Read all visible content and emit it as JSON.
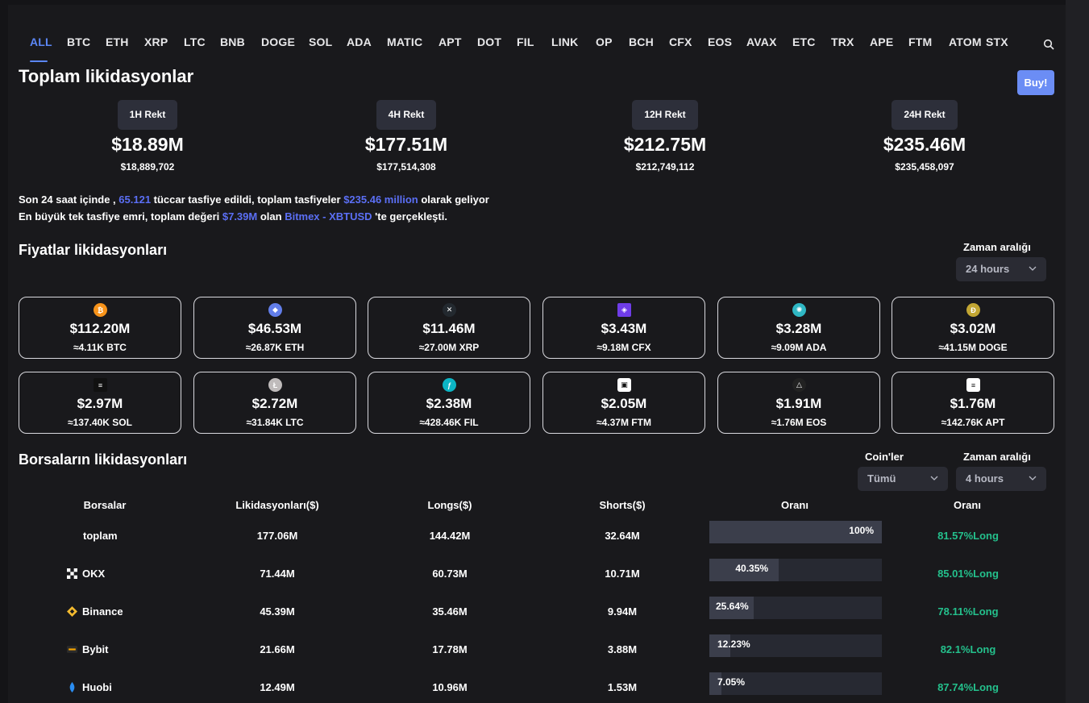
{
  "tabs": [
    "ALL",
    "BTC",
    "ETH",
    "XRP",
    "LTC",
    "BNB",
    "DOGE",
    "SOL",
    "ADA",
    "MATIC",
    "APT",
    "DOT",
    "FIL",
    "LINK",
    "OP",
    "BCH",
    "CFX",
    "EOS",
    "AVAX",
    "ETC",
    "TRX",
    "APE",
    "FTM",
    "ATOM",
    "STX"
  ],
  "header": {
    "title": "Toplam likidasyonlar",
    "buy_label": "Buy!"
  },
  "rekt": [
    {
      "label": "1H Rekt",
      "value": "$18.89M",
      "exact": "$18,889,702"
    },
    {
      "label": "4H Rekt",
      "value": "$177.51M",
      "exact": "$177,514,308"
    },
    {
      "label": "12H Rekt",
      "value": "$212.75M",
      "exact": "$212,749,112"
    },
    {
      "label": "24H Rekt",
      "value": "$235.46M",
      "exact": "$235,458,097"
    }
  ],
  "summary": {
    "l1_a": "Son 24 saat içinde , ",
    "traders": "65.121",
    "l1_b": " tüccar tasfiye edildi, toplam tasfiyeler ",
    "total": "$235.46 million",
    "l1_c": " olarak geliyor",
    "l2_a": "En büyük tek tasfiye emri, toplam değeri ",
    "largest": "$7.39M",
    "l2_b": " olan ",
    "market": "Bitmex - XBTUSD",
    "l2_c": " 'te gerçekleşti."
  },
  "price_section": {
    "title": "Fiyatlar likidasyonları",
    "range_label": "Zaman aralığı",
    "range_value": "24 hours"
  },
  "coins": [
    {
      "icon": "btc-icon",
      "value": "$112.20M",
      "qty": "≈4.11K BTC",
      "color": "#f7931a",
      "glyph": "₿"
    },
    {
      "icon": "eth-icon",
      "value": "$46.53M",
      "qty": "≈26.87K ETH",
      "color": "#627eea",
      "glyph": "◆"
    },
    {
      "icon": "xrp-icon",
      "value": "$11.46M",
      "qty": "≈27.00M XRP",
      "color": "#23292f",
      "glyph": "✕"
    },
    {
      "icon": "cfx-icon",
      "value": "$3.43M",
      "qty": "≈9.18M CFX",
      "color": "#6f3ce8",
      "glyph": "◈"
    },
    {
      "icon": "ada-icon",
      "value": "$3.28M",
      "qty": "≈9.09M ADA",
      "color": "#2fb7c4",
      "glyph": "✺"
    },
    {
      "icon": "doge-icon",
      "value": "$3.02M",
      "qty": "≈41.15M DOGE",
      "color": "#c2a633",
      "glyph": "Đ"
    },
    {
      "icon": "sol-icon",
      "value": "$2.97M",
      "qty": "≈137.40K SOL",
      "color": "#111111",
      "glyph": "≡"
    },
    {
      "icon": "ltc-icon",
      "value": "$2.72M",
      "qty": "≈31.84K LTC",
      "color": "#bfbbbb",
      "glyph": "Ł"
    },
    {
      "icon": "fil-icon",
      "value": "$2.38M",
      "qty": "≈428.46K FIL",
      "color": "#0cb5c5",
      "glyph": "ƒ"
    },
    {
      "icon": "ftm-icon",
      "value": "$2.05M",
      "qty": "≈4.37M FTM",
      "color": "#ffffff",
      "glyph": "▣"
    },
    {
      "icon": "eos-icon",
      "value": "$1.91M",
      "qty": "≈1.76M EOS",
      "color": "#222222",
      "glyph": "△"
    },
    {
      "icon": "apt-icon",
      "value": "$1.76M",
      "qty": "≈142.76K APT",
      "color": "#ffffff",
      "glyph": "≡"
    }
  ],
  "exchange_section": {
    "title": "Borsaların likidasyonları",
    "coins_label": "Coin'ler",
    "coins_value": "Tümü",
    "range_label": "Zaman aralığı",
    "range_value": "4 hours"
  },
  "table": {
    "headers": [
      "Borsalar",
      "Likidasyonları($)",
      "Longs($)",
      "Shorts($)",
      "Oranı",
      "Oranı"
    ],
    "rows": [
      {
        "name": "toplam",
        "logo": "",
        "liq": "177.06M",
        "longs": "144.42M",
        "shorts": "32.64M",
        "share": 1.0,
        "share_label": "100%",
        "ratio": "81.57%Long"
      },
      {
        "name": "OKX",
        "logo": "okx-logo",
        "liq": "71.44M",
        "longs": "60.73M",
        "shorts": "10.71M",
        "share": 0.4035,
        "share_label": "40.35%",
        "ratio": "85.01%Long"
      },
      {
        "name": "Binance",
        "logo": "binance-logo",
        "liq": "45.39M",
        "longs": "35.46M",
        "shorts": "9.94M",
        "share": 0.2564,
        "share_label": "25.64%",
        "ratio": "78.11%Long"
      },
      {
        "name": "Bybit",
        "logo": "bybit-logo",
        "liq": "21.66M",
        "longs": "17.78M",
        "shorts": "3.88M",
        "share": 0.1223,
        "share_label": "12.23%",
        "ratio": "82.1%Long"
      },
      {
        "name": "Huobi",
        "logo": "huobi-logo",
        "liq": "12.49M",
        "longs": "10.96M",
        "shorts": "1.53M",
        "share": 0.0705,
        "share_label": "7.05%",
        "ratio": "87.74%Long"
      }
    ]
  }
}
